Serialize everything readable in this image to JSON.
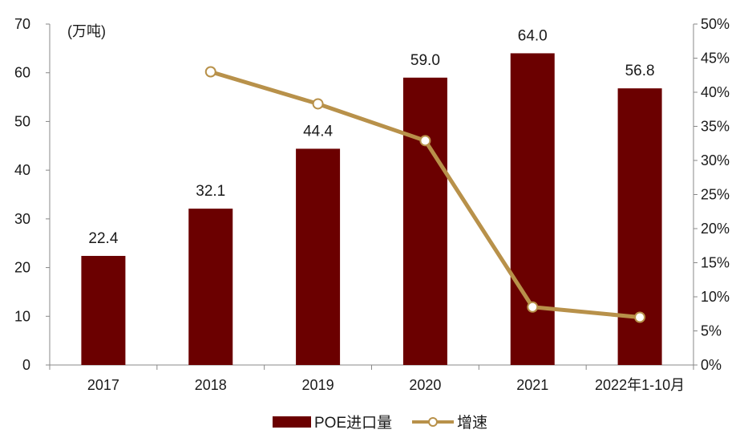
{
  "chart_data": {
    "type": "bar",
    "categories": [
      "2017",
      "2018",
      "2019",
      "2020",
      "2021",
      "2022年1-10月"
    ],
    "series": [
      {
        "name": "POE进口量",
        "type": "bar",
        "axis": "left",
        "values": [
          22.4,
          32.1,
          44.4,
          59.0,
          64.0,
          56.8
        ],
        "labels": [
          "22.4",
          "32.1",
          "44.4",
          "59.0",
          "64.0",
          "56.8"
        ],
        "color": "#6b0000"
      },
      {
        "name": "增速",
        "type": "line",
        "axis": "right",
        "values": [
          null,
          43.0,
          38.3,
          32.9,
          8.5,
          7.0
        ],
        "color": "#b8914a"
      }
    ],
    "unit_label": "(万吨)",
    "y_left": {
      "min": 0,
      "max": 70,
      "ticks": [
        "0",
        "10",
        "20",
        "30",
        "40",
        "50",
        "60",
        "70"
      ]
    },
    "y_right": {
      "min": 0,
      "max": 50,
      "ticks": [
        "0%",
        "5%",
        "10%",
        "15%",
        "20%",
        "25%",
        "30%",
        "35%",
        "40%",
        "45%",
        "50%"
      ]
    },
    "legend_position": "bottom-center",
    "grid": false
  }
}
